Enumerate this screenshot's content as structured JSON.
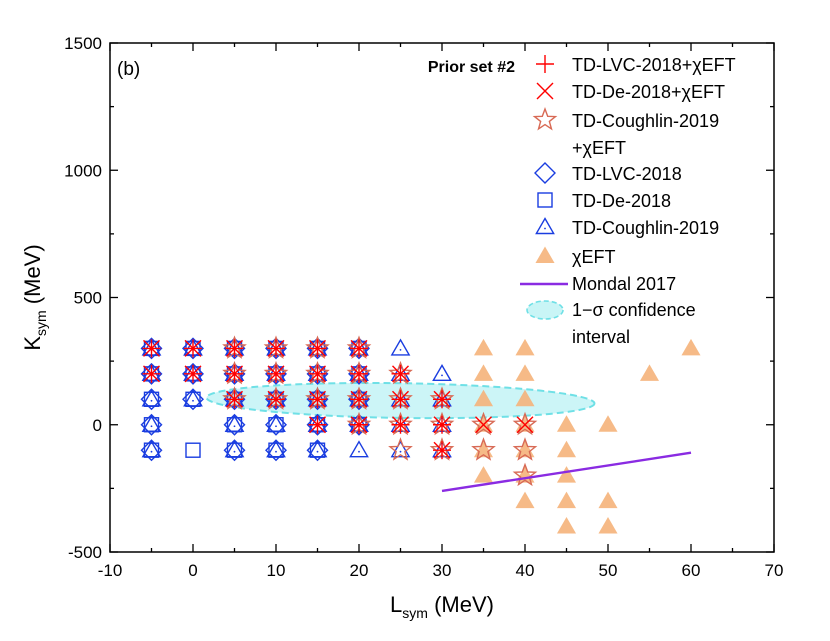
{
  "chart_data": {
    "type": "scatter",
    "panel_label": "(b)",
    "xlabel": "L",
    "xlabel_sub": "sym",
    "xlabel_unit": " (MeV)",
    "ylabel": "K",
    "ylabel_sub": "sym",
    "ylabel_unit": " (MeV)",
    "xlim": [
      -10,
      70
    ],
    "ylim": [
      -500,
      1500
    ],
    "xticks": [
      -10,
      0,
      10,
      20,
      30,
      40,
      50,
      60,
      70
    ],
    "yticks": [
      -500,
      0,
      500,
      1000,
      1500
    ],
    "grid": false,
    "legend_title": "Prior set #2",
    "legend_position": "top-right",
    "series": [
      {
        "name": "TD-LVC-2018+χEFT",
        "marker": "plus",
        "color": "#ff0000",
        "points": [
          [
            -5,
            300
          ],
          [
            -5,
            200
          ],
          [
            0,
            300
          ],
          [
            0,
            200
          ],
          [
            5,
            300
          ],
          [
            5,
            200
          ],
          [
            5,
            100
          ],
          [
            10,
            300
          ],
          [
            10,
            200
          ],
          [
            10,
            100
          ],
          [
            15,
            300
          ],
          [
            15,
            200
          ],
          [
            15,
            100
          ],
          [
            15,
            0
          ],
          [
            20,
            300
          ],
          [
            20,
            200
          ],
          [
            20,
            100
          ],
          [
            20,
            0
          ],
          [
            25,
            200
          ],
          [
            25,
            100
          ],
          [
            25,
            0
          ],
          [
            30,
            100
          ],
          [
            30,
            0
          ],
          [
            30,
            -100
          ]
        ]
      },
      {
        "name": "TD-De-2018+χEFT",
        "marker": "cross",
        "color": "#ff0000",
        "points": [
          [
            -5,
            300
          ],
          [
            -5,
            200
          ],
          [
            0,
            300
          ],
          [
            0,
            200
          ],
          [
            5,
            300
          ],
          [
            5,
            200
          ],
          [
            5,
            100
          ],
          [
            10,
            300
          ],
          [
            10,
            200
          ],
          [
            10,
            100
          ],
          [
            15,
            300
          ],
          [
            15,
            200
          ],
          [
            15,
            100
          ],
          [
            15,
            0
          ],
          [
            20,
            300
          ],
          [
            20,
            200
          ],
          [
            20,
            100
          ],
          [
            20,
            0
          ],
          [
            25,
            200
          ],
          [
            25,
            100
          ],
          [
            25,
            0
          ],
          [
            30,
            100
          ],
          [
            30,
            0
          ],
          [
            30,
            -100
          ],
          [
            35,
            0
          ],
          [
            40,
            0
          ]
        ]
      },
      {
        "name": "TD-Coughlin-2019\n+χEFT",
        "marker": "star",
        "color": "#d86a55",
        "points": [
          [
            5,
            300
          ],
          [
            5,
            200
          ],
          [
            5,
            100
          ],
          [
            10,
            300
          ],
          [
            10,
            200
          ],
          [
            10,
            100
          ],
          [
            15,
            300
          ],
          [
            15,
            200
          ],
          [
            15,
            100
          ],
          [
            20,
            300
          ],
          [
            20,
            200
          ],
          [
            20,
            100
          ],
          [
            20,
            0
          ],
          [
            25,
            200
          ],
          [
            25,
            100
          ],
          [
            25,
            0
          ],
          [
            25,
            -100
          ],
          [
            30,
            100
          ],
          [
            30,
            0
          ],
          [
            30,
            -100
          ],
          [
            35,
            0
          ],
          [
            35,
            -100
          ],
          [
            40,
            0
          ],
          [
            40,
            -100
          ],
          [
            40,
            -200
          ]
        ]
      },
      {
        "name": "TD-LVC-2018",
        "marker": "diamond",
        "color": "#1a3de0",
        "points": [
          [
            -5,
            300
          ],
          [
            -5,
            200
          ],
          [
            -5,
            100
          ],
          [
            -5,
            0
          ],
          [
            -5,
            -100
          ],
          [
            0,
            300
          ],
          [
            0,
            200
          ],
          [
            0,
            100
          ],
          [
            5,
            300
          ],
          [
            5,
            200
          ],
          [
            5,
            100
          ],
          [
            5,
            0
          ],
          [
            5,
            -100
          ],
          [
            10,
            300
          ],
          [
            10,
            200
          ],
          [
            10,
            100
          ],
          [
            10,
            0
          ],
          [
            10,
            -100
          ],
          [
            15,
            300
          ],
          [
            15,
            200
          ],
          [
            15,
            100
          ],
          [
            15,
            0
          ],
          [
            15,
            -100
          ],
          [
            20,
            300
          ],
          [
            20,
            200
          ],
          [
            20,
            100
          ],
          [
            20,
            0
          ]
        ]
      },
      {
        "name": "TD-De-2018",
        "marker": "square",
        "color": "#1a3de0",
        "points": [
          [
            -5,
            300
          ],
          [
            -5,
            200
          ],
          [
            -5,
            100
          ],
          [
            -5,
            0
          ],
          [
            -5,
            -100
          ],
          [
            0,
            300
          ],
          [
            0,
            200
          ],
          [
            0,
            100
          ],
          [
            0,
            -100
          ],
          [
            5,
            300
          ],
          [
            5,
            200
          ],
          [
            5,
            100
          ],
          [
            5,
            0
          ],
          [
            5,
            -100
          ],
          [
            10,
            300
          ],
          [
            10,
            200
          ],
          [
            10,
            100
          ],
          [
            10,
            0
          ],
          [
            10,
            -100
          ],
          [
            15,
            300
          ],
          [
            15,
            200
          ],
          [
            15,
            100
          ],
          [
            15,
            0
          ],
          [
            15,
            -100
          ],
          [
            20,
            300
          ],
          [
            20,
            200
          ],
          [
            20,
            100
          ],
          [
            20,
            0
          ]
        ]
      },
      {
        "name": "TD-Coughlin-2019",
        "marker": "triangle",
        "color": "#1a3de0",
        "points": [
          [
            -5,
            300
          ],
          [
            -5,
            200
          ],
          [
            -5,
            100
          ],
          [
            -5,
            0
          ],
          [
            -5,
            -100
          ],
          [
            0,
            300
          ],
          [
            0,
            200
          ],
          [
            0,
            100
          ],
          [
            5,
            300
          ],
          [
            5,
            200
          ],
          [
            5,
            100
          ],
          [
            5,
            0
          ],
          [
            5,
            -100
          ],
          [
            10,
            300
          ],
          [
            10,
            200
          ],
          [
            10,
            100
          ],
          [
            10,
            0
          ],
          [
            10,
            -100
          ],
          [
            15,
            300
          ],
          [
            15,
            200
          ],
          [
            15,
            100
          ],
          [
            15,
            0
          ],
          [
            15,
            -100
          ],
          [
            20,
            300
          ],
          [
            20,
            200
          ],
          [
            20,
            100
          ],
          [
            20,
            0
          ],
          [
            20,
            -100
          ],
          [
            25,
            300
          ],
          [
            25,
            200
          ],
          [
            25,
            100
          ],
          [
            25,
            0
          ],
          [
            25,
            -100
          ],
          [
            30,
            200
          ],
          [
            30,
            100
          ],
          [
            30,
            0
          ],
          [
            30,
            -100
          ]
        ]
      },
      {
        "name": "χEFT",
        "marker": "filled-triangle",
        "color": "#f5b27a",
        "points": [
          [
            35,
            300
          ],
          [
            35,
            200
          ],
          [
            35,
            100
          ],
          [
            35,
            0
          ],
          [
            35,
            -100
          ],
          [
            35,
            -200
          ],
          [
            40,
            300
          ],
          [
            40,
            200
          ],
          [
            40,
            100
          ],
          [
            40,
            0
          ],
          [
            40,
            -100
          ],
          [
            40,
            -200
          ],
          [
            40,
            -300
          ],
          [
            45,
            0
          ],
          [
            45,
            -100
          ],
          [
            45,
            -200
          ],
          [
            45,
            -300
          ],
          [
            45,
            -400
          ],
          [
            50,
            0
          ],
          [
            50,
            -300
          ],
          [
            50,
            -400
          ],
          [
            55,
            200
          ],
          [
            60,
            300
          ]
        ]
      },
      {
        "name": "Mondal 2017",
        "marker": "line",
        "color": "#8a2be2",
        "points": [
          [
            30,
            -260
          ],
          [
            60,
            -110
          ]
        ]
      }
    ],
    "region": {
      "name": "1−σ confidence\ninterval",
      "color": "#bff3f5",
      "edge_color": "#6fe0e6",
      "center": [
        25,
        95
      ],
      "rx_x_units": 26,
      "ry_y_units": 110,
      "angle_data": -26
    }
  }
}
